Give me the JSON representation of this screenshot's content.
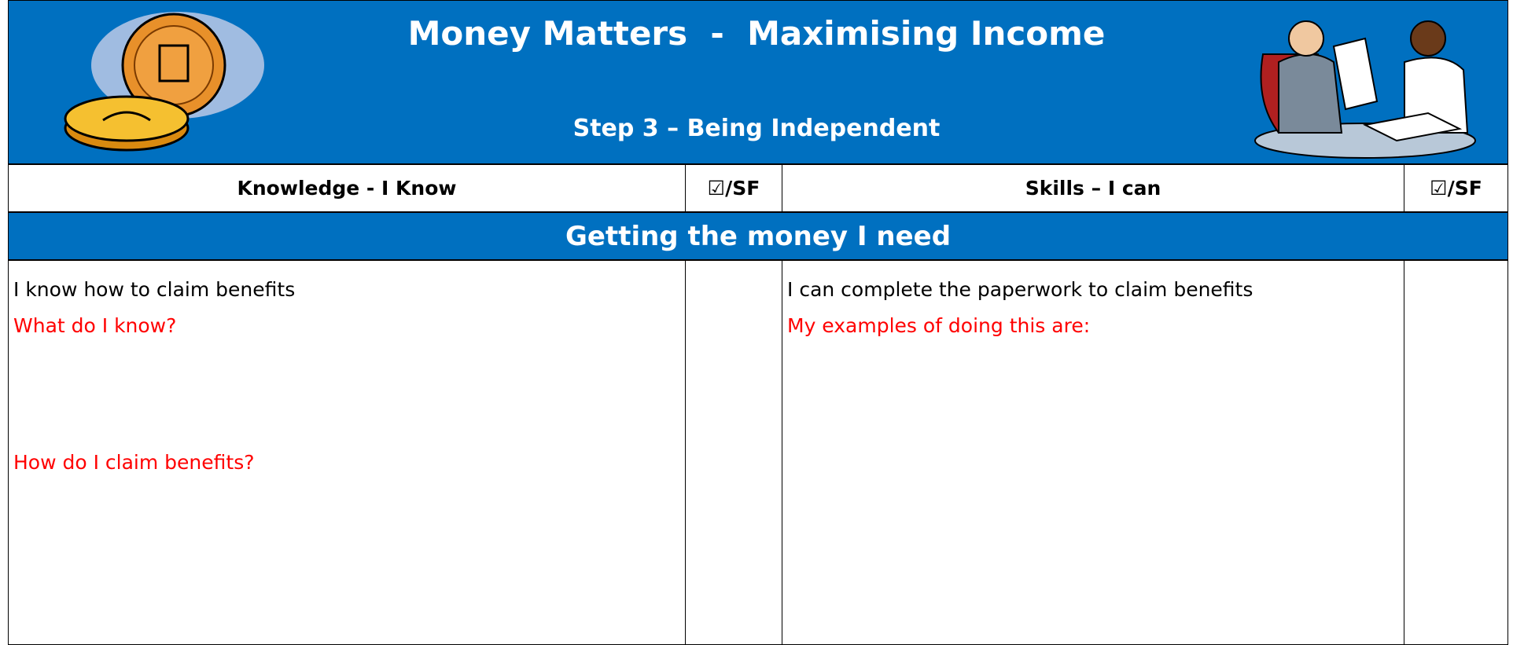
{
  "header": {
    "title": "Money Matters  -  Maximising Income",
    "subtitle": "Step 3 – Being Independent"
  },
  "table": {
    "columns": [
      "Knowledge - I Know",
      "☑/SF",
      "Skills – I can",
      "☑/SF"
    ],
    "section": "Getting the money I need",
    "rows": [
      {
        "knowledge": "I know how to claim benefits",
        "knowledge_prompts": [
          "What do I know?",
          "How do I claim benefits?"
        ],
        "skill": "I can complete the paperwork to claim benefits",
        "skill_prompts": [
          "My examples of doing this are:"
        ]
      }
    ]
  }
}
